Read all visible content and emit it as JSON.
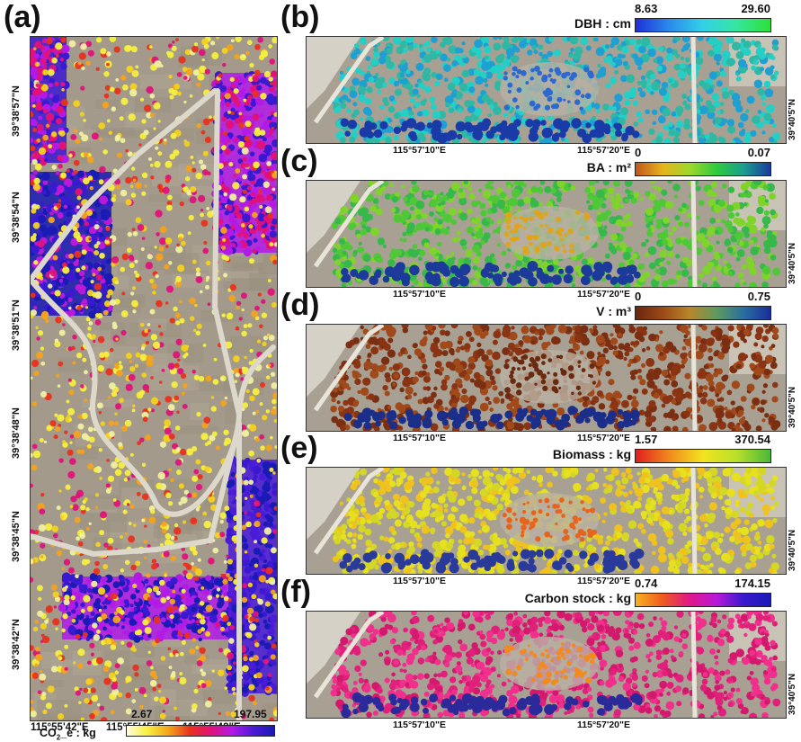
{
  "panel_a": {
    "label": "(a)",
    "lat_ticks": [
      "39°38'57\"N",
      "39°38'54\"N",
      "39°38'51\"N",
      "39°38'48\"N",
      "39°38'45\"N",
      "39°38'42\"N"
    ],
    "lon_ticks": [
      "115°55'42\"E",
      "115°55'45\"E",
      "115°55'48\"E"
    ],
    "colorbar": {
      "title": "CO2_e : kg",
      "title_main": "CO",
      "title_sub": "2",
      "title_rest": "_e : kg",
      "min": "2.67",
      "max": "197.95",
      "colors": [
        "#fffde0",
        "#f7ef3e",
        "#f4a21c",
        "#e8321e",
        "#e0127a",
        "#b21ae8",
        "#4a1bd8",
        "#1a1ab4"
      ]
    }
  },
  "panels": [
    {
      "label": "(b)",
      "colorbar": {
        "title": "DBH : cm",
        "min": "8.63",
        "max": "29.60",
        "colors": [
          "#1f2fd8",
          "#2b8bea",
          "#33d1e8",
          "#36e6a0",
          "#2ee038"
        ]
      },
      "tree_colors": [
        "#2fb8a4",
        "#24d0c6",
        "#1fa0d2",
        "#2c6ad0",
        "#1a3aa8"
      ]
    },
    {
      "label": "(c)",
      "colorbar": {
        "title": "BA : m²",
        "min": "0",
        "max": "0.07",
        "colors": [
          "#c0561e",
          "#e6b31b",
          "#9ed82a",
          "#2ecb3f",
          "#1c9e8e",
          "#1a3a9e"
        ]
      },
      "tree_colors": [
        "#4fc838",
        "#7fd32a",
        "#36b84a",
        "#e0a41c",
        "#1c3a9a"
      ]
    },
    {
      "label": "(d)",
      "colorbar": {
        "title": "V : m³",
        "min": "0",
        "max": "0.75",
        "colors": [
          "#6a260e",
          "#9a4a16",
          "#b9862a",
          "#5e9a5e",
          "#2a6ea0",
          "#1a2e9a"
        ]
      },
      "tree_colors": [
        "#8a3414",
        "#7a2e12",
        "#a04a1c",
        "#6a2a10",
        "#1a2e8a"
      ]
    },
    {
      "label": "(e)",
      "colorbar": {
        "title": "Biomass : kg",
        "min": "1.57",
        "max": "370.54",
        "colors": [
          "#e01e1e",
          "#f08a1e",
          "#f2e41e",
          "#b8e02a",
          "#4ab83a"
        ]
      },
      "tree_colors": [
        "#e6e01e",
        "#d4d824",
        "#f0c21e",
        "#e6641e",
        "#2a3a9a"
      ]
    },
    {
      "label": "(f)",
      "colorbar": {
        "title": "Carbon stock : kg",
        "min": "0.74",
        "max": "174.15",
        "colors": [
          "#f7b21e",
          "#f05a1e",
          "#e0188a",
          "#b81ad8",
          "#3a1ad0",
          "#1a1ab4"
        ]
      },
      "tree_colors": [
        "#e0207a",
        "#d4186e",
        "#f0308c",
        "#f28a1e",
        "#2a2a9a"
      ]
    }
  ],
  "right_lat_tick": "39°40'5\"N",
  "right_lon_ticks": [
    "115°57'10\"E",
    "115°57'20\"E"
  ]
}
